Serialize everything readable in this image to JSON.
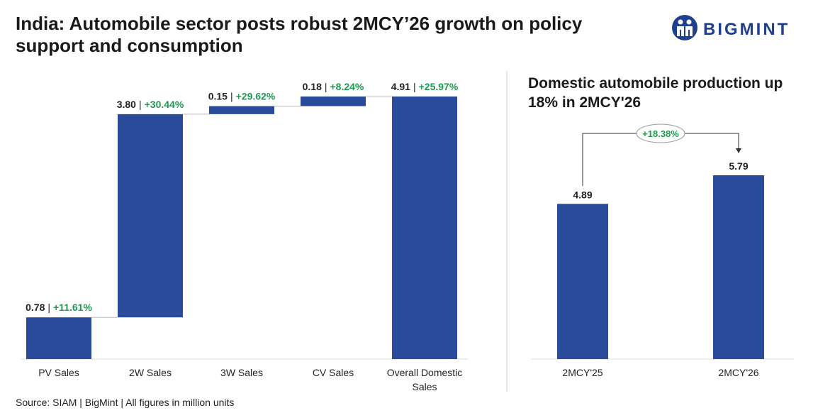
{
  "header": {
    "title": "India: Automobile sector posts robust 2MCY’26 growth on policy support and consumption",
    "logo": "BIGMINT"
  },
  "chart_data": [
    {
      "type": "waterfall",
      "categories": [
        "PV Sales",
        "2W Sales",
        "3W Sales",
        "CV Sales",
        "Overall Domestic Sales"
      ],
      "values": [
        0.78,
        3.8,
        0.15,
        0.18,
        4.91
      ],
      "value_labels": [
        "0.78",
        "3.80",
        "0.15",
        "0.18",
        "4.91"
      ],
      "growth_labels": [
        "+11.61%",
        "+30.44%",
        "+29.62%",
        "+8.24%",
        "+25.97%"
      ],
      "separator": "|",
      "last_is_total": true,
      "color": "#2a4a9a",
      "growth_color": "#1e9b4f"
    },
    {
      "type": "bar",
      "title": "Domestic automobile production up 18% in 2MCY'26",
      "categories": [
        "2MCY'25",
        "2MCY'26"
      ],
      "values": [
        4.89,
        5.79
      ],
      "annotation": "+18.38%",
      "color": "#2a4a9a",
      "annotation_color": "#1e9b4f"
    }
  ],
  "source": "Source: SIAM | BigMint | All figures in million units"
}
